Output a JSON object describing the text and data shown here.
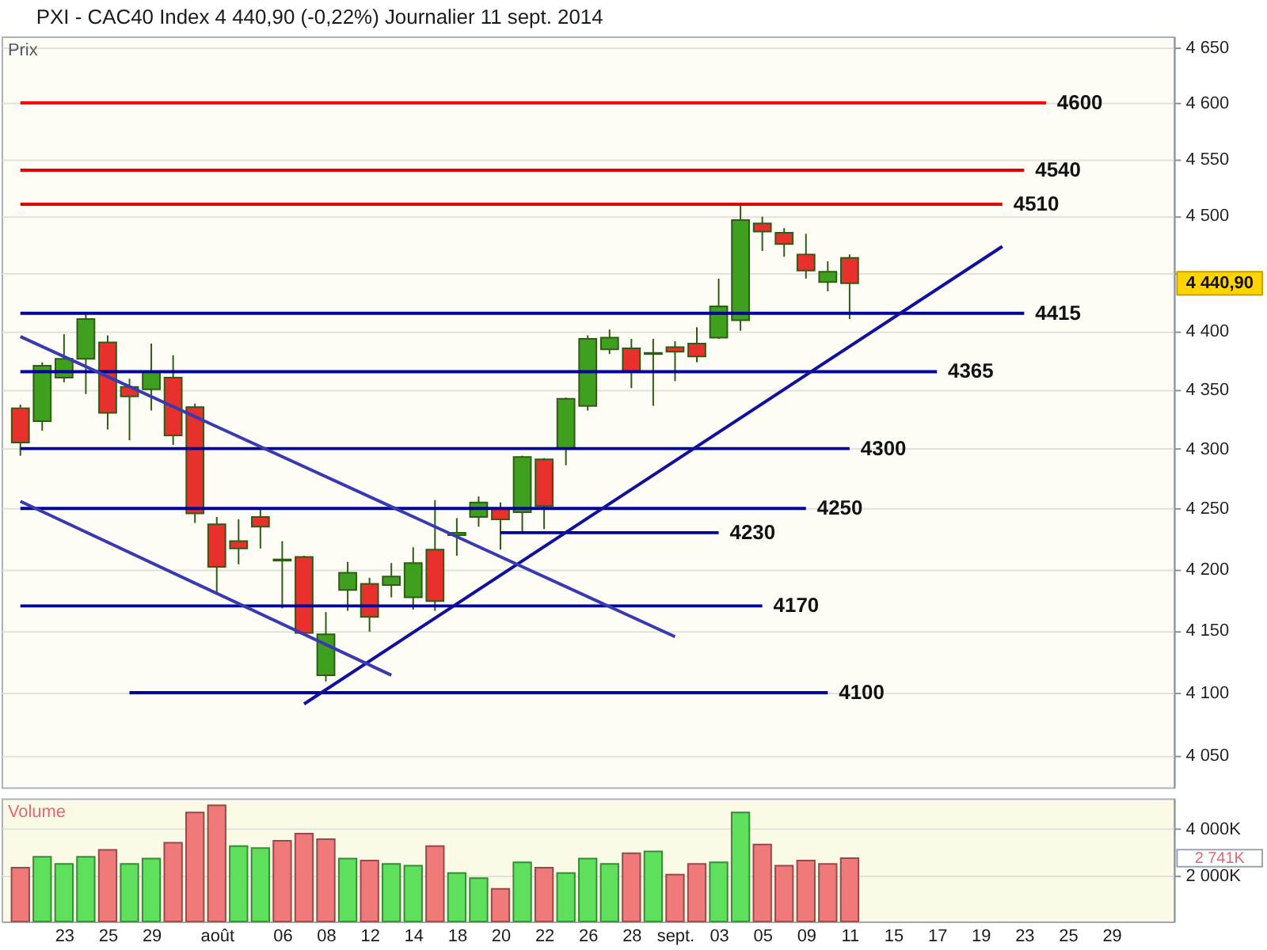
{
  "chart_data": [
    {
      "type": "candlestick",
      "title": "PXI - CAC40 Index    4 440,90 (-0,22%)    Journalier  11 sept. 2014",
      "ylabel": "Prix",
      "categories": [
        null,
        null,
        null,
        null,
        null,
        null,
        null,
        null,
        null,
        null,
        null,
        null,
        null,
        null,
        null,
        null,
        null,
        null,
        null,
        null,
        null,
        null,
        null,
        null,
        null,
        null,
        null,
        null,
        null,
        null,
        null,
        null,
        null,
        null,
        null,
        null,
        null,
        null,
        null,
        null,
        null,
        null,
        null,
        null,
        null,
        null,
        null,
        null,
        null,
        null,
        null,
        null,
        null
      ],
      "ohlc": [
        [
          4334,
          4337,
          4294,
          4305
        ],
        [
          4323,
          4373,
          4315,
          4370
        ],
        [
          4360,
          4397,
          4356,
          4376
        ],
        [
          4376,
          4415,
          4346,
          4410
        ],
        [
          4390,
          4396,
          4316,
          4330
        ],
        [
          4352,
          4359,
          4307,
          4344
        ],
        [
          4350,
          4389,
          4332,
          4365
        ],
        [
          4360,
          4379,
          4303,
          4311
        ],
        [
          4335,
          4338,
          4238,
          4246
        ],
        [
          4237,
          4243,
          4180,
          4202
        ],
        [
          4223,
          4241,
          4204,
          4217
        ],
        [
          4243,
          4250,
          4217,
          4235
        ],
        [
          4208,
          4223,
          4168,
          4207
        ],
        [
          4210,
          4211,
          4147,
          4148
        ],
        [
          4114,
          4165,
          4109,
          4147
        ],
        [
          4183,
          4206,
          4166,
          4197
        ],
        [
          4188,
          4193,
          4149,
          4161
        ],
        [
          4187,
          4205,
          4177,
          4194
        ],
        [
          4177,
          4218,
          4167,
          4205
        ],
        [
          4216,
          4257,
          4166,
          4174
        ],
        [
          4228,
          4242,
          4211,
          4230
        ],
        [
          4243,
          4260,
          4235,
          4255
        ],
        [
          4250,
          4255,
          4216,
          4241
        ],
        [
          4247,
          4294,
          4231,
          4293
        ],
        [
          4291,
          4292,
          4233,
          4252
        ],
        [
          4300,
          4343,
          4286,
          4342
        ],
        [
          4336,
          4396,
          4332,
          4393
        ],
        [
          4384,
          4401,
          4380,
          4394
        ],
        [
          4385,
          4393,
          4351,
          4365
        ],
        [
          4380,
          4393,
          4336,
          4381
        ],
        [
          4386,
          4391,
          4357,
          4382
        ],
        [
          4389,
          4403,
          4373,
          4378
        ],
        [
          4394,
          4445,
          4393,
          4421
        ],
        [
          4409,
          4509,
          4400,
          4496
        ],
        [
          4493,
          4499,
          4469,
          4486
        ],
        [
          4485,
          4489,
          4464,
          4475
        ],
        [
          4466,
          4484,
          4445,
          4452
        ],
        [
          4442,
          4460,
          4434,
          4451
        ],
        [
          4463,
          4466,
          4410,
          4440.9
        ],
        null,
        null,
        null,
        null,
        null,
        null,
        null,
        null,
        null,
        null,
        null,
        null,
        null,
        null
      ],
      "colors": [
        "#e8302c",
        "#3fa020",
        "#3fa020",
        "#3fa020",
        "#e8302c",
        "#e8302c",
        "#3fa020",
        "#e8302c",
        "#e8302c",
        "#e8302c",
        "#e8302c",
        "#e8302c",
        "#e8302c",
        "#e8302c",
        "#3fa020",
        "#3fa020",
        "#e8302c",
        "#3fa020",
        "#3fa020",
        "#e8302c",
        "#3fa020",
        "#3fa020",
        "#e8302c",
        "#3fa020",
        "#e8302c",
        "#3fa020",
        "#3fa020",
        "#3fa020",
        "#e8302c",
        "#3fa020",
        "#e8302c",
        "#e8302c",
        "#3fa020",
        "#3fa020",
        "#e8302c",
        "#e8302c",
        "#e8302c",
        "#3fa020",
        "#e8302c",
        null,
        null,
        null,
        null,
        null,
        null,
        null,
        null,
        null,
        null,
        null,
        null,
        null,
        null
      ],
      "series": [
        {
          "type": "line",
          "name": "4600",
          "color": "#ff0000",
          "values": [
            4600,
            4600,
            4600,
            4600,
            4600,
            4600,
            4600,
            4600,
            4600,
            4600,
            4600,
            4600,
            4600,
            4600,
            4600,
            4600,
            4600,
            4600,
            4600,
            4600,
            4600,
            4600,
            4600,
            4600,
            4600,
            4600,
            4600,
            4600,
            4600,
            4600,
            4600,
            4600,
            4600,
            4600,
            4600,
            4600,
            4600,
            4600,
            4600,
            4600,
            4600,
            4600,
            4600,
            4600,
            4600,
            4600,
            4600,
            4600,
            null,
            null,
            null,
            null,
            null
          ]
        },
        {
          "type": "line",
          "name": "4540",
          "color": "#e00000",
          "values": [
            4540,
            4540,
            4540,
            4540,
            4540,
            4540,
            4540,
            4540,
            4540,
            4540,
            4540,
            4540,
            4540,
            4540,
            4540,
            4540,
            4540,
            4540,
            4540,
            4540,
            4540,
            4540,
            4540,
            4540,
            4540,
            4540,
            4540,
            4540,
            4540,
            4540,
            4540,
            4540,
            4540,
            4540,
            4540,
            4540,
            4540,
            4540,
            4540,
            4540,
            4540,
            4540,
            4540,
            4540,
            4540,
            4540,
            4540,
            null,
            null,
            null,
            null,
            null,
            null
          ]
        },
        {
          "type": "line",
          "name": "4510",
          "color": "#e00000",
          "values": [
            4510,
            4510,
            4510,
            4510,
            4510,
            4510,
            4510,
            4510,
            4510,
            4510,
            4510,
            4510,
            4510,
            4510,
            4510,
            4510,
            4510,
            4510,
            4510,
            4510,
            4510,
            4510,
            4510,
            4510,
            4510,
            4510,
            4510,
            4510,
            4510,
            4510,
            4510,
            4510,
            4510,
            4510,
            4510,
            4510,
            4510,
            4510,
            4510,
            4510,
            4510,
            4510,
            4510,
            4510,
            4510,
            4510,
            null,
            null,
            null,
            null,
            null,
            null,
            null
          ]
        },
        {
          "type": "line",
          "name": "4415",
          "color": "#000099",
          "values": [
            4415,
            4415,
            4415,
            4415,
            4415,
            4415,
            4415,
            4415,
            4415,
            4415,
            4415,
            4415,
            4415,
            4415,
            4415,
            4415,
            4415,
            4415,
            4415,
            4415,
            4415,
            4415,
            4415,
            4415,
            4415,
            4415,
            4415,
            4415,
            4415,
            4415,
            4415,
            4415,
            4415,
            4415,
            4415,
            4415,
            4415,
            4415,
            4415,
            4415,
            4415,
            4415,
            4415,
            4415,
            4415,
            4415,
            4415,
            null,
            null,
            null,
            null,
            null,
            null
          ]
        },
        {
          "type": "line",
          "name": "4365",
          "color": "#000099",
          "values": [
            4365,
            4365,
            4365,
            4365,
            4365,
            4365,
            4365,
            4365,
            4365,
            4365,
            4365,
            4365,
            4365,
            4365,
            4365,
            4365,
            4365,
            4365,
            4365,
            4365,
            4365,
            4365,
            4365,
            4365,
            4365,
            4365,
            4365,
            4365,
            4365,
            4365,
            4365,
            4365,
            4365,
            4365,
            4365,
            4365,
            4365,
            4365,
            4365,
            4365,
            4365,
            4365,
            4365,
            null,
            null,
            null,
            null,
            null,
            null,
            null,
            null,
            null,
            null
          ]
        },
        {
          "type": "line",
          "name": "4300",
          "color": "#000099",
          "values": [
            4300,
            4300,
            4300,
            4300,
            4300,
            4300,
            4300,
            4300,
            4300,
            4300,
            4300,
            4300,
            4300,
            4300,
            4300,
            4300,
            4300,
            4300,
            4300,
            4300,
            4300,
            4300,
            4300,
            4300,
            4300,
            4300,
            4300,
            4300,
            4300,
            4300,
            4300,
            4300,
            4300,
            4300,
            4300,
            4300,
            4300,
            4300,
            4300,
            null,
            null,
            null,
            null,
            null,
            null,
            null,
            null,
            null,
            null,
            null,
            null,
            null,
            null
          ]
        },
        {
          "type": "line",
          "name": "4250",
          "color": "#000099",
          "values": [
            4250,
            4250,
            4250,
            4250,
            4250,
            4250,
            4250,
            4250,
            4250,
            4250,
            4250,
            4250,
            4250,
            4250,
            4250,
            4250,
            4250,
            4250,
            4250,
            4250,
            4250,
            4250,
            4250,
            4250,
            4250,
            4250,
            4250,
            4250,
            4250,
            4250,
            4250,
            4250,
            4250,
            4250,
            4250,
            4250,
            4250,
            null,
            null,
            null,
            null,
            null,
            null,
            null,
            null,
            null,
            null,
            null,
            null,
            null,
            null,
            null,
            null
          ]
        },
        {
          "type": "line",
          "name": "4230",
          "color": "#000099",
          "values": [
            null,
            null,
            null,
            null,
            null,
            null,
            null,
            null,
            null,
            null,
            null,
            null,
            null,
            null,
            null,
            null,
            null,
            null,
            null,
            null,
            null,
            null,
            4230,
            4230,
            4230,
            4230,
            4230,
            4230,
            4230,
            4230,
            4230,
            4230,
            4230,
            null,
            null,
            null,
            null,
            null,
            null,
            null,
            null,
            null,
            null,
            null,
            null,
            null,
            null,
            null,
            null,
            null,
            null,
            null,
            null
          ]
        },
        {
          "type": "line",
          "name": "4170",
          "color": "#000099",
          "values": [
            4170,
            4170,
            4170,
            4170,
            4170,
            4170,
            4170,
            4170,
            4170,
            4170,
            4170,
            4170,
            4170,
            4170,
            4170,
            4170,
            4170,
            4170,
            4170,
            4170,
            4170,
            4170,
            4170,
            4170,
            4170,
            4170,
            4170,
            4170,
            4170,
            4170,
            4170,
            4170,
            4170,
            4170,
            4170,
            null,
            null,
            null,
            null,
            null,
            null,
            null,
            null,
            null,
            null,
            null,
            null,
            null,
            null,
            null,
            null,
            null,
            null
          ]
        },
        {
          "type": "line",
          "name": "4100",
          "color": "#000099",
          "values": [
            null,
            null,
            null,
            null,
            null,
            4100,
            4100,
            4100,
            4100,
            4100,
            4100,
            4100,
            4100,
            4100,
            4100,
            4100,
            4100,
            4100,
            4100,
            4100,
            4100,
            4100,
            4100,
            4100,
            4100,
            4100,
            4100,
            4100,
            4100,
            4100,
            4100,
            4100,
            4100,
            4100,
            4100,
            4100,
            4100,
            4100,
            null,
            null,
            null,
            null,
            null,
            null,
            null,
            null,
            null,
            null,
            null,
            null,
            null,
            null,
            null
          ]
        },
        {
          "type": "line",
          "color": "#10109c",
          "values": [
            null,
            null,
            null,
            null,
            null,
            null,
            null,
            null,
            null,
            null,
            null,
            null,
            null,
            4091,
            null,
            null,
            null,
            null,
            null,
            null,
            null,
            null,
            null,
            null,
            null,
            null,
            null,
            null,
            null,
            null,
            null,
            null,
            null,
            null,
            null,
            null,
            null,
            null,
            null,
            null,
            null,
            null,
            null,
            null,
            null,
            4473,
            null,
            null,
            null,
            null,
            null,
            null,
            null
          ]
        },
        {
          "type": "line",
          "color": "#3a3ab0",
          "values": [
            4395,
            null,
            null,
            null,
            null,
            null,
            null,
            null,
            null,
            null,
            null,
            null,
            null,
            null,
            null,
            null,
            null,
            null,
            null,
            null,
            null,
            null,
            null,
            null,
            null,
            null,
            null,
            null,
            null,
            null,
            4145,
            null,
            null,
            null,
            null,
            null,
            null,
            null,
            null,
            null,
            null,
            null,
            null,
            null,
            null,
            null,
            null,
            null,
            null,
            null,
            null,
            null,
            null
          ]
        },
        {
          "type": "line",
          "color": "#3a3ab0",
          "values": [
            4256,
            null,
            null,
            null,
            null,
            null,
            null,
            null,
            null,
            null,
            null,
            null,
            null,
            null,
            null,
            null,
            null,
            4114,
            null,
            null,
            null,
            null,
            null,
            null,
            null,
            null,
            null,
            null,
            null,
            null,
            null,
            null,
            null,
            null,
            null,
            null,
            null,
            null,
            null,
            null,
            null,
            null,
            null,
            null,
            null,
            null,
            null,
            null,
            null,
            null,
            null,
            null,
            null
          ]
        }
      ],
      "ylim": [
        4025,
        4660
      ],
      "yticks": [
        {
          "value": 4050,
          "label": "4 050"
        },
        {
          "value": 4100,
          "label": "4 100"
        },
        {
          "value": 4150,
          "label": "4 150"
        },
        {
          "value": 4200,
          "label": "4 200"
        },
        {
          "value": 4250,
          "label": "4 250"
        },
        {
          "value": 4300,
          "label": "4 300"
        },
        {
          "value": 4350,
          "label": "4 350"
        },
        {
          "value": 4400,
          "label": "4 400"
        },
        {
          "value": 4450,
          "label": null
        },
        {
          "value": 4500,
          "label": "4 500"
        },
        {
          "value": 4550,
          "label": "4 550"
        },
        {
          "value": 4600,
          "label": "4 600"
        },
        {
          "value": 4650,
          "label": "4 650"
        }
      ],
      "log": true,
      "grid": "y",
      "annotations": [
        "4 440,90"
      ]
    },
    {
      "type": "bar",
      "ylabel": "Volume",
      "categories": [
        null,
        null,
        "23",
        null,
        "25",
        null,
        "29",
        null,
        null,
        "août",
        null,
        null,
        "06",
        null,
        "08",
        null,
        "12",
        null,
        "14",
        null,
        "18",
        null,
        "20",
        null,
        "22",
        null,
        "26",
        null,
        "28",
        null,
        "sept.",
        null,
        "03",
        null,
        "05",
        null,
        "09",
        null,
        "11",
        null,
        "15",
        null,
        "17",
        null,
        "19",
        null,
        "23",
        null,
        "25",
        null,
        "29",
        null,
        null
      ],
      "values": [
        2330,
        2800,
        2490,
        2800,
        3100,
        2490,
        2720,
        3410,
        4720,
        5030,
        3260,
        3180,
        3490,
        3800,
        3560,
        2720,
        2640,
        2490,
        2410,
        3260,
        2100,
        1870,
        1410,
        2560,
        2330,
        2100,
        2720,
        2490,
        2950,
        3030,
        2030,
        2490,
        2560,
        4720,
        3330,
        2410,
        2640,
        2490,
        2740,
        null,
        null,
        null,
        null,
        null,
        null,
        null,
        null,
        null,
        null,
        null,
        null,
        null,
        null
      ],
      "colors": [
        "#f07a7a",
        "#5ee05c",
        "#5ee05c",
        "#5ee05c",
        "#f07a7a",
        "#5ee05c",
        "#5ee05c",
        "#f07a7a",
        "#f07a7a",
        "#f07a7a",
        "#5ee05c",
        "#5ee05c",
        "#f07a7a",
        "#f07a7a",
        "#f07a7a",
        "#5ee05c",
        "#f07a7a",
        "#5ee05c",
        "#5ee05c",
        "#f07a7a",
        "#5ee05c",
        "#5ee05c",
        "#f07a7a",
        "#5ee05c",
        "#f07a7a",
        "#5ee05c",
        "#5ee05c",
        "#5ee05c",
        "#f07a7a",
        "#5ee05c",
        "#f07a7a",
        "#f07a7a",
        "#5ee05c",
        "#5ee05c",
        "#f07a7a",
        "#f07a7a",
        "#f07a7a",
        "#f07a7a",
        "#f07a7a",
        null,
        null,
        null,
        null,
        null,
        null,
        null,
        null,
        null,
        null,
        null,
        null,
        null,
        null
      ],
      "ylim": [
        0,
        5330
      ],
      "yticks": [
        {
          "value": 2000,
          "label": "2 000K"
        },
        {
          "value": 4000,
          "label": "4 000K"
        }
      ],
      "grid": "y",
      "annotations": [
        "2 741K"
      ]
    }
  ]
}
